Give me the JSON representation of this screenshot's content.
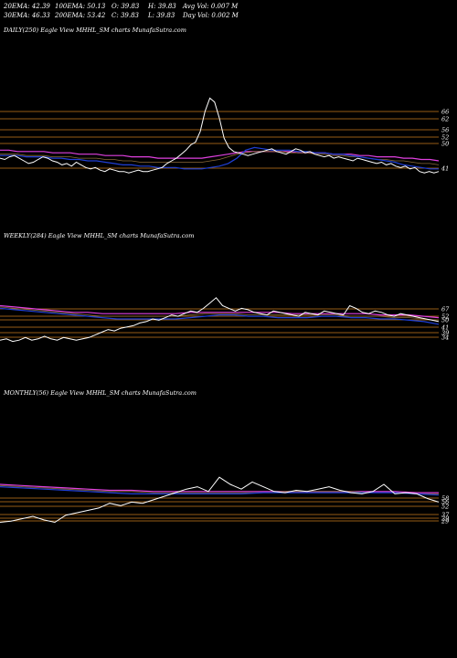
{
  "header": {
    "ema20": "20EMA: 42.39",
    "ema30": "30EMA: 46.33",
    "ema100": "100EMA: 50.13",
    "ema200": "200EMA: 53.42",
    "open": "O: 39.83",
    "close": "C: 39.83",
    "high": "H: 39.83",
    "low": "L: 39.83",
    "avg_vol": "Avg Vol: 0.007  M",
    "day_vol": "Day Vol: 0.002  M"
  },
  "colors": {
    "price": "#ffffff",
    "ema_fast": "#1f3fd6",
    "ema_slow": "#e040e0",
    "ema_mid": "#6a6aff",
    "ema_brown": "#8a6a3a",
    "level_line": "#c87a1e",
    "level_text": "#ffffff"
  },
  "chart_data": [
    {
      "type": "line",
      "title": "DAILY(250) Eagle  View  MHHL_SM charts MunafaSutra.com",
      "level_labels": [
        "66",
        "62",
        "56",
        "52",
        "50",
        "41"
      ],
      "price": [
        50,
        49,
        51,
        52,
        50,
        48,
        46,
        47,
        49,
        51,
        50,
        48,
        47,
        45,
        46,
        44,
        47,
        45,
        43,
        42,
        43,
        41,
        40,
        42,
        41,
        40,
        40,
        39,
        40,
        41,
        40,
        40,
        41,
        42,
        43,
        46,
        48,
        50,
        53,
        56,
        60,
        62,
        70,
        85,
        95,
        92,
        80,
        65,
        58,
        55,
        54,
        53,
        52,
        53,
        54,
        55,
        56,
        57,
        55,
        54,
        53,
        55,
        57,
        56,
        54,
        55,
        53,
        52,
        51,
        52,
        50,
        51,
        50,
        49,
        48,
        50,
        49,
        48,
        47,
        46,
        47,
        45,
        46,
        44,
        43,
        44,
        42,
        43,
        40,
        39,
        40,
        39,
        40
      ],
      "ema_fast": [
        52,
        52,
        52,
        51,
        51,
        51,
        50,
        50,
        49,
        49,
        48,
        48,
        47,
        46,
        45,
        45,
        44,
        44,
        43,
        43,
        43,
        42,
        42,
        42,
        43,
        44,
        46,
        50,
        56,
        58,
        57,
        56,
        56,
        56,
        55,
        55,
        54,
        54,
        53,
        53,
        52,
        51,
        50,
        49,
        48,
        47,
        45,
        44,
        43,
        42,
        42
      ],
      "ema_slow": [
        56,
        56,
        55,
        55,
        55,
        55,
        54,
        54,
        54,
        53,
        53,
        53,
        52,
        52,
        52,
        51,
        51,
        51,
        50,
        50,
        50,
        50,
        50,
        50,
        51,
        52,
        53,
        54,
        55,
        55,
        55,
        55,
        55,
        55,
        54,
        54,
        54,
        54,
        53,
        53,
        53,
        52,
        52,
        51,
        51,
        51,
        50,
        50,
        49,
        49,
        48
      ],
      "ema_mid": [
        53,
        53,
        53,
        52,
        52,
        52,
        51,
        51,
        51,
        50,
        50,
        50,
        49,
        49,
        48,
        48,
        47,
        47,
        47,
        47,
        47,
        47,
        47,
        47,
        48,
        49,
        51,
        53,
        54,
        55,
        55,
        55,
        55,
        54,
        54,
        54,
        53,
        53,
        52,
        52,
        51,
        51,
        50,
        49,
        49,
        48,
        48,
        47,
        46,
        46,
        45
      ]
    },
    {
      "type": "line",
      "title": "WEEKLY(284) Eagle  View  MHHL_SM charts MunafaSutra.com",
      "level_labels": [
        "67",
        "52",
        "50",
        "41",
        "39",
        "34"
      ],
      "price": [
        34,
        35,
        33,
        34,
        36,
        34,
        35,
        37,
        35,
        34,
        36,
        35,
        34,
        35,
        36,
        38,
        40,
        42,
        41,
        43,
        44,
        45,
        47,
        48,
        50,
        49,
        51,
        53,
        52,
        54,
        56,
        55,
        58,
        62,
        66,
        60,
        58,
        56,
        58,
        57,
        55,
        54,
        53,
        56,
        55,
        54,
        53,
        52,
        55,
        54,
        53,
        56,
        55,
        54,
        53,
        60,
        58,
        55,
        54,
        56,
        55,
        53,
        52,
        54,
        53,
        52,
        51,
        50,
        49,
        48
      ],
      "ema_fast": [
        58,
        57,
        56,
        55,
        54,
        53,
        52,
        51,
        50,
        50,
        50,
        50,
        50,
        51,
        52,
        53,
        53,
        52,
        52,
        51,
        51,
        51,
        52,
        52,
        51,
        51,
        50,
        50,
        49,
        48,
        46
      ],
      "ema_slow": [
        60,
        59,
        58,
        57,
        56,
        55,
        55,
        54,
        54,
        54,
        54,
        54,
        54,
        55,
        55,
        55,
        55,
        55,
        55,
        55,
        54,
        54,
        54,
        54,
        54,
        54,
        53,
        53,
        53,
        52,
        51
      ],
      "ema_mid": [
        59,
        58,
        57,
        56,
        55,
        54,
        53,
        52,
        52,
        52,
        52,
        52,
        52,
        53,
        54,
        54,
        54,
        53,
        53,
        53,
        53,
        53,
        53,
        53,
        52,
        52,
        52,
        51,
        51,
        50,
        49
      ]
    },
    {
      "type": "line",
      "title": "MONTHLY(56) Eagle  View  MHHL_SM charts MunafaSutra.com",
      "level_labels": [
        "58",
        "56",
        "52",
        "37",
        "29",
        "29"
      ],
      "price": [
        30,
        31,
        33,
        35,
        32,
        30,
        36,
        38,
        40,
        42,
        46,
        44,
        47,
        46,
        49,
        52,
        55,
        58,
        60,
        56,
        68,
        62,
        58,
        64,
        60,
        56,
        55,
        57,
        56,
        58,
        60,
        57,
        55,
        54,
        56,
        62,
        54,
        55,
        54,
        50,
        47
      ],
      "ema_fast": [
        60,
        59,
        58,
        57,
        56,
        55,
        54,
        54,
        54,
        54,
        54,
        54,
        55,
        55,
        55,
        55,
        55,
        55,
        55,
        54,
        53
      ],
      "ema_slow": [
        62,
        61,
        60,
        59,
        58,
        57,
        57,
        56,
        56,
        56,
        56,
        56,
        56,
        56,
        56,
        56,
        56,
        56,
        56,
        55,
        55
      ],
      "ema_mid": [
        61,
        60,
        59,
        58,
        57,
        56,
        56,
        55,
        55,
        55,
        55,
        55,
        55,
        56,
        56,
        56,
        56,
        55,
        55,
        54,
        54
      ]
    }
  ]
}
